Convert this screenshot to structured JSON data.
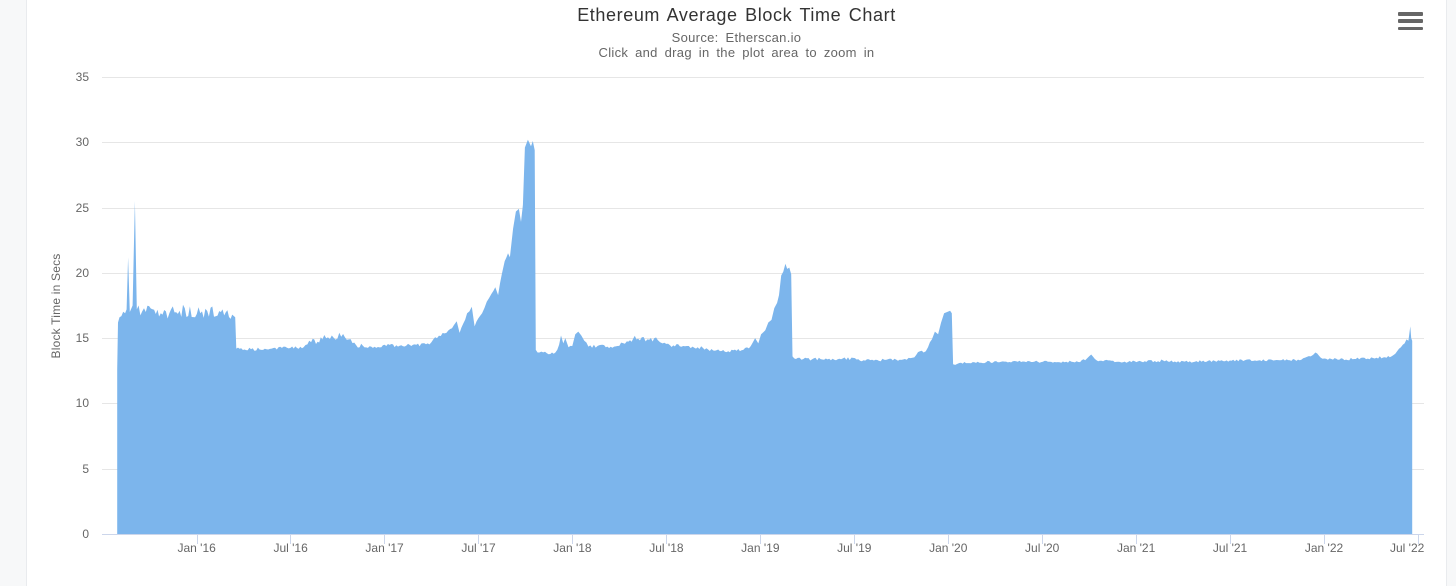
{
  "header": {
    "title": "Ethereum Average Block Time Chart",
    "source": "Source: Etherscan.io",
    "zoom_hint": "Click and drag in the plot area to zoom in"
  },
  "context_menu": {
    "icon": "hamburger-icon",
    "color": "#666666"
  },
  "chart_data": {
    "type": "area",
    "title": "Ethereum Average Block Time Chart",
    "subtitle": [
      "Source: Etherscan.io",
      "Click and drag in the plot area to zoom in"
    ],
    "xlabel": "",
    "ylabel": "Block Time in Secs",
    "ylim": [
      0,
      35
    ],
    "yticks": [
      0,
      5,
      10,
      15,
      20,
      25,
      30,
      35
    ],
    "xlim": [
      2015.497,
      2022.533
    ],
    "xticks": [
      {
        "label": "Jan '16",
        "x": 2016.0
      },
      {
        "label": "Jul '16",
        "x": 2016.5
      },
      {
        "label": "Jan '17",
        "x": 2017.0
      },
      {
        "label": "Jul '17",
        "x": 2017.5
      },
      {
        "label": "Jan '18",
        "x": 2018.0
      },
      {
        "label": "Jul '18",
        "x": 2018.5
      },
      {
        "label": "Jan '19",
        "x": 2019.0
      },
      {
        "label": "Jul '19",
        "x": 2019.5
      },
      {
        "label": "Jan '20",
        "x": 2020.0
      },
      {
        "label": "Jul '20",
        "x": 2020.5
      },
      {
        "label": "Jan '21",
        "x": 2021.0
      },
      {
        "label": "Jul '21",
        "x": 2021.5
      },
      {
        "label": "Jan '22",
        "x": 2022.0
      },
      {
        "label": "Jul '22",
        "x": 2022.5
      }
    ],
    "grid": true,
    "legend": "none",
    "colors": {
      "area": "#7cb5ec",
      "grid": "#e6e6e6",
      "axis": "#ccd6eb",
      "label": "#666666",
      "title": "#333333"
    },
    "series": [
      {
        "name": "Block Time in Secs",
        "points": [
          [
            2015.578,
            12.6,
            0
          ],
          [
            2015.582,
            16.2,
            0.5
          ],
          [
            2015.59,
            16.6,
            0.6
          ],
          [
            2015.62,
            16.9,
            0.6
          ],
          [
            2015.628,
            17.2,
            0.35
          ],
          [
            2015.636,
            21.2,
            0
          ],
          [
            2015.645,
            17.0,
            0.35
          ],
          [
            2015.66,
            17.5,
            0.35
          ],
          [
            2015.672,
            25.5,
            0
          ],
          [
            2015.682,
            17.2,
            0.45
          ],
          [
            2015.73,
            17.0,
            0.6
          ],
          [
            2015.81,
            16.9,
            0.6
          ],
          [
            2015.91,
            17.1,
            0.6
          ],
          [
            2016.02,
            16.9,
            0.55
          ],
          [
            2016.13,
            17.0,
            0.55
          ],
          [
            2016.19,
            16.8,
            0.5
          ],
          [
            2016.206,
            16.6,
            0.35
          ],
          [
            2016.212,
            14.2,
            0.15
          ],
          [
            2016.29,
            14.15,
            0.15
          ],
          [
            2016.4,
            14.2,
            0.15
          ],
          [
            2016.5,
            14.25,
            0.15
          ],
          [
            2016.57,
            14.3,
            0.2
          ],
          [
            2016.61,
            14.7,
            0.3
          ],
          [
            2016.67,
            14.9,
            0.35
          ],
          [
            2016.72,
            15.2,
            0.45
          ],
          [
            2016.77,
            15.1,
            0.4
          ],
          [
            2016.81,
            14.9,
            0.35
          ],
          [
            2016.85,
            14.45,
            0.2
          ],
          [
            2016.93,
            14.35,
            0.18
          ],
          [
            2017.01,
            14.4,
            0.18
          ],
          [
            2017.09,
            14.45,
            0.18
          ],
          [
            2017.17,
            14.5,
            0.2
          ],
          [
            2017.23,
            14.6,
            0.2
          ],
          [
            2017.28,
            15.0,
            0.2
          ],
          [
            2017.33,
            15.4,
            0.2
          ],
          [
            2017.37,
            16.0,
            0.15
          ],
          [
            2017.385,
            16.3,
            0.1
          ],
          [
            2017.4,
            15.4,
            0.15
          ],
          [
            2017.44,
            16.9,
            0.15
          ],
          [
            2017.465,
            17.4,
            0.1
          ],
          [
            2017.48,
            15.9,
            0.15
          ],
          [
            2017.52,
            16.9,
            0.15
          ],
          [
            2017.545,
            17.8,
            0.12
          ],
          [
            2017.57,
            18.4,
            0.12
          ],
          [
            2017.59,
            18.9,
            0.1
          ],
          [
            2017.605,
            18.3,
            0.1
          ],
          [
            2017.625,
            19.9,
            0.12
          ],
          [
            2017.64,
            20.9,
            0.12
          ],
          [
            2017.658,
            21.5,
            0.1
          ],
          [
            2017.668,
            21.2,
            0.1
          ],
          [
            2017.685,
            23.4,
            0.12
          ],
          [
            2017.7,
            24.7,
            0.12
          ],
          [
            2017.716,
            24.9,
            0.12
          ],
          [
            2017.727,
            23.9,
            0.1
          ],
          [
            2017.737,
            25.2,
            0.1
          ],
          [
            2017.748,
            29.6,
            0.15
          ],
          [
            2017.764,
            30.2,
            0.18
          ],
          [
            2017.78,
            29.7,
            0.18
          ],
          [
            2017.79,
            30.1,
            0.12
          ],
          [
            2017.8,
            29.4,
            0.1
          ],
          [
            2017.806,
            14.1,
            0.12
          ],
          [
            2017.825,
            13.9,
            0.12
          ],
          [
            2017.865,
            13.85,
            0.12
          ],
          [
            2017.91,
            13.9,
            0.12
          ],
          [
            2017.93,
            14.5,
            0.2
          ],
          [
            2017.94,
            15.2,
            0.15
          ],
          [
            2017.952,
            14.6,
            0.2
          ],
          [
            2017.963,
            15.0,
            0.2
          ],
          [
            2017.98,
            14.3,
            0.15
          ],
          [
            2018.0,
            14.4,
            0.2
          ],
          [
            2018.016,
            15.3,
            0.15
          ],
          [
            2018.032,
            15.5,
            0.15
          ],
          [
            2018.048,
            15.2,
            0.15
          ],
          [
            2018.064,
            14.8,
            0.15
          ],
          [
            2018.086,
            14.35,
            0.15
          ],
          [
            2018.134,
            14.4,
            0.15
          ],
          [
            2018.187,
            14.35,
            0.15
          ],
          [
            2018.24,
            14.4,
            0.15
          ],
          [
            2018.29,
            14.75,
            0.2
          ],
          [
            2018.35,
            14.95,
            0.2
          ],
          [
            2018.4,
            14.9,
            0.2
          ],
          [
            2018.455,
            14.85,
            0.18
          ],
          [
            2018.48,
            14.6,
            0.18
          ],
          [
            2018.52,
            14.45,
            0.15
          ],
          [
            2018.59,
            14.4,
            0.15
          ],
          [
            2018.64,
            14.35,
            0.15
          ],
          [
            2018.695,
            14.25,
            0.15
          ],
          [
            2018.75,
            14.05,
            0.12
          ],
          [
            2018.83,
            14.0,
            0.12
          ],
          [
            2018.91,
            14.1,
            0.15
          ],
          [
            2018.95,
            14.4,
            0.15
          ],
          [
            2018.973,
            15.0,
            0.12
          ],
          [
            2018.99,
            14.6,
            0.12
          ],
          [
            2019.005,
            15.3,
            0.12
          ],
          [
            2019.027,
            15.6,
            0.12
          ],
          [
            2019.043,
            16.2,
            0.1
          ],
          [
            2019.06,
            16.4,
            0.1
          ],
          [
            2019.075,
            17.3,
            0.1
          ],
          [
            2019.09,
            17.7,
            0.1
          ],
          [
            2019.1,
            18.3,
            0.1
          ],
          [
            2019.112,
            19.8,
            0.1
          ],
          [
            2019.123,
            20.1,
            0.1
          ],
          [
            2019.134,
            20.7,
            0.08
          ],
          [
            2019.144,
            20.3,
            0.08
          ],
          [
            2019.155,
            20.4,
            0.08
          ],
          [
            2019.165,
            19.9,
            0.08
          ],
          [
            2019.172,
            13.6,
            0.1
          ],
          [
            2019.19,
            13.4,
            0.12
          ],
          [
            2019.23,
            13.4,
            0.15
          ],
          [
            2019.34,
            13.35,
            0.15
          ],
          [
            2019.44,
            13.45,
            0.15
          ],
          [
            2019.55,
            13.3,
            0.13
          ],
          [
            2019.66,
            13.35,
            0.13
          ],
          [
            2019.77,
            13.4,
            0.14
          ],
          [
            2019.81,
            13.5,
            0.15
          ],
          [
            2019.83,
            13.7,
            0.12
          ],
          [
            2019.85,
            14.0,
            0.12
          ],
          [
            2019.87,
            13.9,
            0.12
          ],
          [
            2019.893,
            14.3,
            0.12
          ],
          [
            2019.914,
            14.9,
            0.12
          ],
          [
            2019.93,
            15.5,
            0.1
          ],
          [
            2019.947,
            15.3,
            0.1
          ],
          [
            2019.963,
            16.2,
            0.1
          ],
          [
            2019.979,
            16.9,
            0.1
          ],
          [
            2019.995,
            17.0,
            0.08
          ],
          [
            2020.011,
            17.1,
            0.08
          ],
          [
            2020.02,
            16.9,
            0.08
          ],
          [
            2020.027,
            13.0,
            0.1
          ],
          [
            2020.06,
            13.1,
            0.1
          ],
          [
            2020.14,
            13.15,
            0.1
          ],
          [
            2020.3,
            13.2,
            0.1
          ],
          [
            2020.46,
            13.2,
            0.1
          ],
          [
            2020.62,
            13.15,
            0.1
          ],
          [
            2020.73,
            13.3,
            0.12
          ],
          [
            2020.762,
            13.75,
            0.1
          ],
          [
            2020.79,
            13.3,
            0.1
          ],
          [
            2020.94,
            13.2,
            0.1
          ],
          [
            2021.1,
            13.25,
            0.1
          ],
          [
            2021.26,
            13.2,
            0.1
          ],
          [
            2021.42,
            13.25,
            0.1
          ],
          [
            2021.58,
            13.3,
            0.1
          ],
          [
            2021.74,
            13.3,
            0.1
          ],
          [
            2021.88,
            13.35,
            0.1
          ],
          [
            2021.93,
            13.6,
            0.1
          ],
          [
            2021.955,
            13.9,
            0.1
          ],
          [
            2021.984,
            13.5,
            0.1
          ],
          [
            2022.04,
            13.4,
            0.12
          ],
          [
            2022.17,
            13.4,
            0.12
          ],
          [
            2022.28,
            13.5,
            0.12
          ],
          [
            2022.36,
            13.6,
            0.1
          ],
          [
            2022.39,
            14.0,
            0.1
          ],
          [
            2022.41,
            14.3,
            0.08
          ],
          [
            2022.43,
            14.6,
            0.08
          ],
          [
            2022.44,
            14.9,
            0.08
          ],
          [
            2022.45,
            14.8,
            0.06
          ],
          [
            2022.46,
            15.9,
            0
          ],
          [
            2022.465,
            15.0,
            0
          ],
          [
            2022.47,
            14.8,
            0
          ]
        ]
      }
    ]
  }
}
